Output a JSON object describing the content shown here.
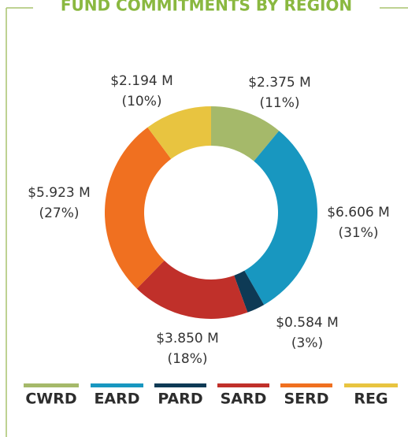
{
  "chart_data": {
    "type": "donut",
    "title": "FUND COMMITMENTS BY REGION",
    "categories": [
      "CWRD",
      "EARD",
      "PARD",
      "SARD",
      "SERD",
      "REG"
    ],
    "values": [
      2.375,
      6.606,
      0.584,
      3.85,
      5.923,
      2.194
    ],
    "value_labels": [
      "$2.375 M",
      "$6.606 M",
      "$0.584 M",
      "$3.850 M",
      "$5.923 M",
      "$2.194 M"
    ],
    "percent_labels": [
      "(11%)",
      "(31%)",
      "(3%)",
      "(18%)",
      "(27%)",
      "(10%)"
    ],
    "colors": [
      "#a5b96a",
      "#1897c0",
      "#0e3a55",
      "#c0302a",
      "#f07020",
      "#e8c440"
    ]
  }
}
